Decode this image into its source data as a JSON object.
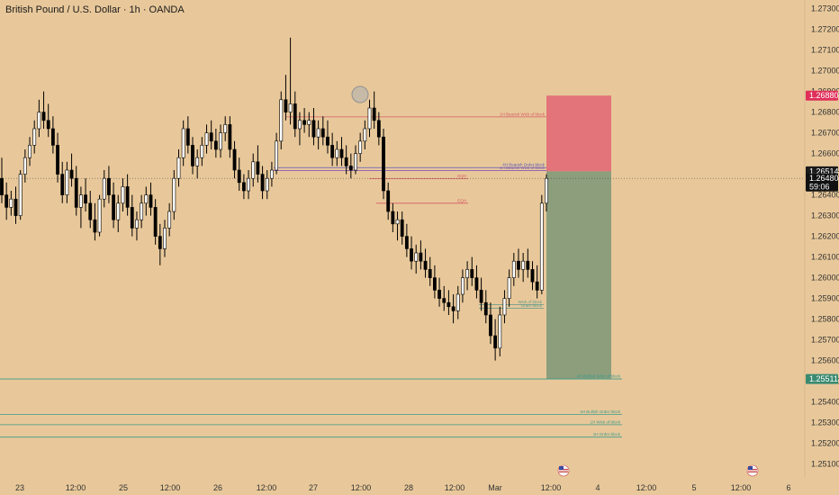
{
  "chart_data": {
    "type": "candlestick",
    "title": "British Pound / U.S. Dollar · 1h · OANDA",
    "ylim": [
      1.2504,
      1.2735
    ],
    "y_ticks": [
      1.273,
      1.272,
      1.271,
      1.27,
      1.269,
      1.268,
      1.267,
      1.266,
      1.265,
      1.264,
      1.263,
      1.262,
      1.261,
      1.26,
      1.259,
      1.258,
      1.257,
      1.256,
      1.255,
      1.254,
      1.253,
      1.252,
      1.251
    ],
    "x_labels": [
      "23",
      "12:00",
      "25",
      "12:00",
      "26",
      "12:00",
      "27",
      "12:00",
      "28",
      "12:00",
      "Mar",
      "12:00",
      "4",
      "12:00",
      "5",
      "12:00",
      "6"
    ],
    "price_tags": [
      {
        "label": "1.26880",
        "value": 1.2688,
        "color": "#e0305a"
      },
      {
        "label": "1.26514",
        "value": 1.26514,
        "color": "#1a1a1a"
      },
      {
        "label": "1.26480",
        "sub": "59:06",
        "value": 1.2648,
        "color": "#111111"
      },
      {
        "label": "1.25511",
        "value": 1.25511,
        "color": "#3a8a70"
      }
    ],
    "zones": [
      {
        "from": 1.26514,
        "to": 1.2688,
        "color": "#e2747a"
      },
      {
        "from": 1.25511,
        "to": 1.26514,
        "color": "#8c9e7c"
      }
    ],
    "levels": [
      {
        "price": 1.26777,
        "label": "1H Bearish Wick of block",
        "color": "#d65a66"
      },
      {
        "price": 1.26532,
        "label": "4H Bearish Order block",
        "color": "#5b5bb8"
      },
      {
        "price": 1.26518,
        "label": "4H Bearish Wick of block",
        "color": "#8b5bb8"
      },
      {
        "price": 1.26478,
        "label": "EQH",
        "color": "#d65a66"
      },
      {
        "price": 1.2636,
        "label": "EQH",
        "color": "#d65a66"
      },
      {
        "price": 1.2587,
        "label": "Wick of block",
        "color": "#5a9a8a"
      },
      {
        "price": 1.25852,
        "label": "Order block",
        "color": "#5a9a8a"
      },
      {
        "price": 1.25511,
        "label": "4H Bullish Wick of block",
        "color": "#3a9a8a"
      },
      {
        "price": 1.2534,
        "label": "4H Bullish Order block",
        "color": "#3a9a8a"
      },
      {
        "price": 1.2529,
        "label": "1H Wick of block",
        "color": "#3a9a8a"
      },
      {
        "price": 1.2523,
        "label": "1H Order block",
        "color": "#3a9a8a"
      }
    ],
    "candle_colors": {
      "up": "#ffffff",
      "down": "#000000",
      "wick": "#000000"
    },
    "candles": [
      [
        1.2648,
        1.2658,
        1.2636,
        1.264
      ],
      [
        1.264,
        1.2646,
        1.2628,
        1.2634
      ],
      [
        1.2634,
        1.2642,
        1.263,
        1.2638
      ],
      [
        1.2638,
        1.2644,
        1.2626,
        1.263
      ],
      [
        1.263,
        1.2652,
        1.2628,
        1.265
      ],
      [
        1.265,
        1.2662,
        1.2646,
        1.2658
      ],
      [
        1.2658,
        1.2668,
        1.2654,
        1.2664
      ],
      [
        1.2664,
        1.2676,
        1.266,
        1.2672
      ],
      [
        1.2672,
        1.2686,
        1.2668,
        1.268
      ],
      [
        1.268,
        1.269,
        1.2672,
        1.2676
      ],
      [
        1.2676,
        1.2684,
        1.2668,
        1.2672
      ],
      [
        1.2672,
        1.2678,
        1.266,
        1.2664
      ],
      [
        1.2664,
        1.267,
        1.2646,
        1.265
      ],
      [
        1.265,
        1.2656,
        1.2636,
        1.264
      ],
      [
        1.264,
        1.2656,
        1.2636,
        1.2652
      ],
      [
        1.2652,
        1.266,
        1.2644,
        1.2648
      ],
      [
        1.2648,
        1.2654,
        1.263,
        1.2634
      ],
      [
        1.2634,
        1.2644,
        1.2624,
        1.264
      ],
      [
        1.264,
        1.2648,
        1.2632,
        1.2636
      ],
      [
        1.2636,
        1.2642,
        1.2624,
        1.2628
      ],
      [
        1.2628,
        1.2636,
        1.2618,
        1.2622
      ],
      [
        1.2622,
        1.264,
        1.262,
        1.2638
      ],
      [
        1.2638,
        1.2652,
        1.2634,
        1.2648
      ],
      [
        1.2648,
        1.2654,
        1.2636,
        1.264
      ],
      [
        1.264,
        1.2646,
        1.2624,
        1.2628
      ],
      [
        1.2628,
        1.264,
        1.2622,
        1.2636
      ],
      [
        1.2636,
        1.2648,
        1.2632,
        1.2644
      ],
      [
        1.2644,
        1.265,
        1.263,
        1.2634
      ],
      [
        1.2634,
        1.264,
        1.262,
        1.2624
      ],
      [
        1.2624,
        1.2632,
        1.2618,
        1.2628
      ],
      [
        1.2628,
        1.264,
        1.2624,
        1.2636
      ],
      [
        1.2636,
        1.2644,
        1.263,
        1.264
      ],
      [
        1.264,
        1.2646,
        1.263,
        1.2634
      ],
      [
        1.2634,
        1.2638,
        1.2616,
        1.262
      ],
      [
        1.262,
        1.2626,
        1.2606,
        1.2614
      ],
      [
        1.2614,
        1.2628,
        1.261,
        1.2624
      ],
      [
        1.2624,
        1.2636,
        1.262,
        1.2632
      ],
      [
        1.2632,
        1.2652,
        1.2628,
        1.2648
      ],
      [
        1.2648,
        1.2662,
        1.2644,
        1.2658
      ],
      [
        1.2658,
        1.2676,
        1.2654,
        1.2672
      ],
      [
        1.2672,
        1.2678,
        1.266,
        1.2664
      ],
      [
        1.2664,
        1.2668,
        1.265,
        1.2654
      ],
      [
        1.2654,
        1.2662,
        1.2648,
        1.2658
      ],
      [
        1.2658,
        1.2668,
        1.2654,
        1.2664
      ],
      [
        1.2664,
        1.2674,
        1.266,
        1.267
      ],
      [
        1.267,
        1.2676,
        1.2662,
        1.2666
      ],
      [
        1.2666,
        1.2672,
        1.2658,
        1.2662
      ],
      [
        1.2662,
        1.2674,
        1.2658,
        1.267
      ],
      [
        1.267,
        1.2678,
        1.2666,
        1.2674
      ],
      [
        1.2674,
        1.2678,
        1.2658,
        1.2662
      ],
      [
        1.2662,
        1.2666,
        1.2648,
        1.2652
      ],
      [
        1.2652,
        1.2658,
        1.2642,
        1.2646
      ],
      [
        1.2646,
        1.265,
        1.2638,
        1.2642
      ],
      [
        1.2642,
        1.2652,
        1.2638,
        1.2648
      ],
      [
        1.2648,
        1.266,
        1.2644,
        1.2656
      ],
      [
        1.2656,
        1.2664,
        1.2646,
        1.265
      ],
      [
        1.265,
        1.2654,
        1.2638,
        1.2642
      ],
      [
        1.2642,
        1.2652,
        1.2638,
        1.2648
      ],
      [
        1.2648,
        1.2656,
        1.2644,
        1.2652
      ],
      [
        1.2652,
        1.267,
        1.265,
        1.2666
      ],
      [
        1.2666,
        1.269,
        1.2662,
        1.2686
      ],
      [
        1.2686,
        1.2698,
        1.2676,
        1.268
      ],
      [
        1.268,
        1.2716,
        1.2674,
        1.2684
      ],
      [
        1.2684,
        1.269,
        1.2668,
        1.2672
      ],
      [
        1.2672,
        1.268,
        1.2664,
        1.2676
      ],
      [
        1.2676,
        1.2682,
        1.267,
        1.2674
      ],
      [
        1.2674,
        1.268,
        1.2668,
        1.2676
      ],
      [
        1.2676,
        1.2682,
        1.2664,
        1.2668
      ],
      [
        1.2668,
        1.2676,
        1.2662,
        1.2672
      ],
      [
        1.2672,
        1.2678,
        1.2664,
        1.2668
      ],
      [
        1.2668,
        1.2676,
        1.266,
        1.2664
      ],
      [
        1.2664,
        1.267,
        1.2654,
        1.2658
      ],
      [
        1.2658,
        1.2666,
        1.2654,
        1.2662
      ],
      [
        1.2662,
        1.2668,
        1.2654,
        1.2658
      ],
      [
        1.2658,
        1.2664,
        1.265,
        1.2654
      ],
      [
        1.2654,
        1.266,
        1.2648,
        1.2652
      ],
      [
        1.2652,
        1.2664,
        1.265,
        1.266
      ],
      [
        1.266,
        1.267,
        1.2656,
        1.2666
      ],
      [
        1.2666,
        1.2676,
        1.2662,
        1.2672
      ],
      [
        1.2672,
        1.2686,
        1.2668,
        1.2682
      ],
      [
        1.2682,
        1.269,
        1.2672,
        1.2676
      ],
      [
        1.2676,
        1.268,
        1.2664,
        1.2668
      ],
      [
        1.2668,
        1.2672,
        1.2638,
        1.2642
      ],
      [
        1.2642,
        1.2646,
        1.2628,
        1.2632
      ],
      [
        1.2632,
        1.2636,
        1.2622,
        1.2626
      ],
      [
        1.2626,
        1.2632,
        1.2618,
        1.2628
      ],
      [
        1.2628,
        1.2632,
        1.2616,
        1.262
      ],
      [
        1.262,
        1.2626,
        1.261,
        1.2614
      ],
      [
        1.2614,
        1.262,
        1.2604,
        1.2608
      ],
      [
        1.2608,
        1.2616,
        1.2602,
        1.2612
      ],
      [
        1.2612,
        1.2618,
        1.2604,
        1.2608
      ],
      [
        1.2608,
        1.2614,
        1.26,
        1.2604
      ],
      [
        1.2604,
        1.261,
        1.2596,
        1.26
      ],
      [
        1.26,
        1.2606,
        1.259,
        1.2594
      ],
      [
        1.2594,
        1.26,
        1.2586,
        1.259
      ],
      [
        1.259,
        1.2596,
        1.2584,
        1.2588
      ],
      [
        1.2588,
        1.2594,
        1.2582,
        1.2586
      ],
      [
        1.2586,
        1.2592,
        1.2578,
        1.2584
      ],
      [
        1.2584,
        1.2596,
        1.258,
        1.2592
      ],
      [
        1.2592,
        1.2604,
        1.2588,
        1.26
      ],
      [
        1.26,
        1.2608,
        1.2594,
        1.2604
      ],
      [
        1.2604,
        1.261,
        1.2596,
        1.26
      ],
      [
        1.26,
        1.2606,
        1.259,
        1.2594
      ],
      [
        1.2594,
        1.26,
        1.2584,
        1.2588
      ],
      [
        1.2588,
        1.2594,
        1.2578,
        1.2582
      ],
      [
        1.2582,
        1.2588,
        1.2568,
        1.2572
      ],
      [
        1.2572,
        1.258,
        1.256,
        1.2566
      ],
      [
        1.2566,
        1.2586,
        1.2562,
        1.2582
      ],
      [
        1.2582,
        1.2594,
        1.2578,
        1.259
      ],
      [
        1.259,
        1.2604,
        1.2586,
        1.26
      ],
      [
        1.26,
        1.2612,
        1.2596,
        1.2608
      ],
      [
        1.2608,
        1.2614,
        1.26,
        1.2604
      ],
      [
        1.2604,
        1.2612,
        1.2598,
        1.2608
      ],
      [
        1.2608,
        1.2614,
        1.26,
        1.2604
      ],
      [
        1.2604,
        1.2608,
        1.2594,
        1.2598
      ],
      [
        1.2598,
        1.2606,
        1.259,
        1.2594
      ],
      [
        1.2594,
        1.264,
        1.2592,
        1.2636
      ],
      [
        1.2636,
        1.265,
        1.2632,
        1.2648
      ]
    ]
  }
}
